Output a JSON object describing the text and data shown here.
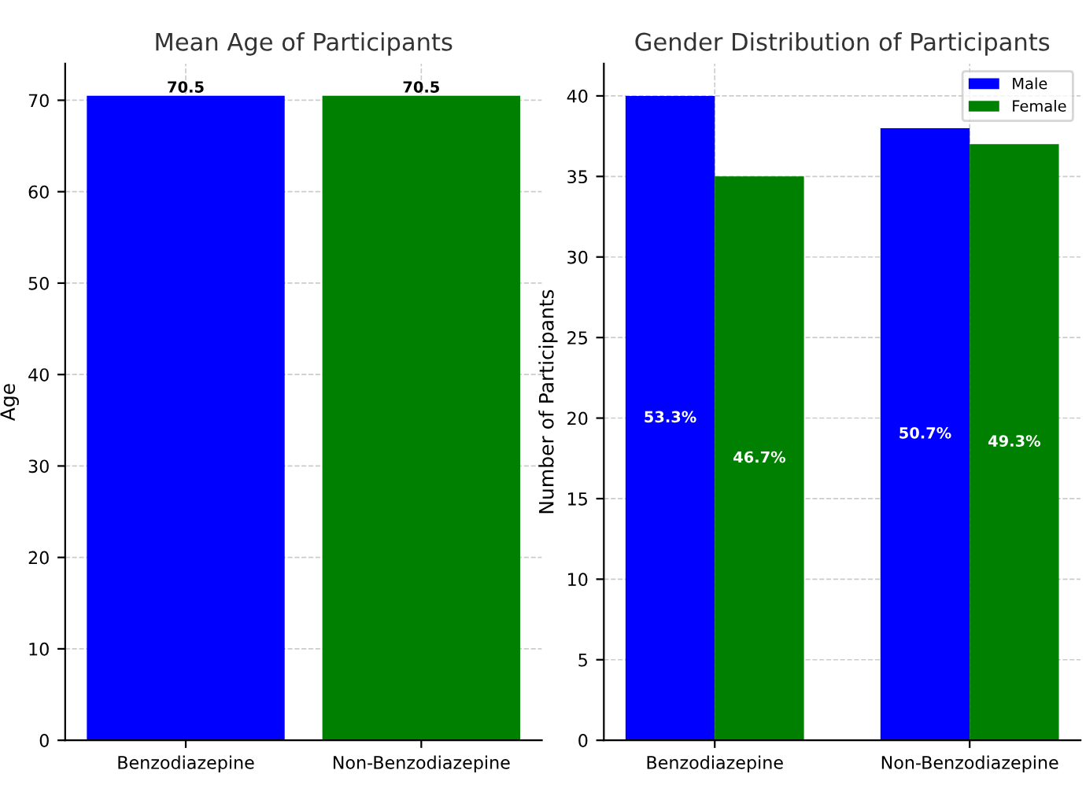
{
  "chart_data": [
    {
      "type": "bar",
      "title": "Mean Age of Participants",
      "ylabel": "Age",
      "categories": [
        "Benzodiazepine",
        "Non-Benzodiazepine"
      ],
      "values": [
        70.5,
        70.5
      ],
      "colors": [
        "#0000ff",
        "#008000"
      ],
      "data_labels": true,
      "ylim": [
        0,
        74
      ],
      "yticks": [
        0,
        10,
        20,
        30,
        40,
        50,
        60,
        70
      ],
      "grid": true
    },
    {
      "type": "bar",
      "title": "Gender Distribution of Participants",
      "ylabel": "Number of Participants",
      "categories": [
        "Benzodiazepine",
        "Non-Benzodiazepine"
      ],
      "series": [
        {
          "name": "Male",
          "color": "#0000ff",
          "values": [
            40,
            38
          ]
        },
        {
          "name": "Female",
          "color": "#008000",
          "values": [
            35,
            37
          ]
        }
      ],
      "annotations": [
        "53.3%",
        "50.7%",
        "46.7%",
        "49.3%"
      ],
      "ylim": [
        0,
        42
      ],
      "yticks": [
        0,
        5,
        10,
        15,
        20,
        25,
        30,
        35,
        40
      ],
      "grid": true,
      "legend": "top right"
    }
  ]
}
